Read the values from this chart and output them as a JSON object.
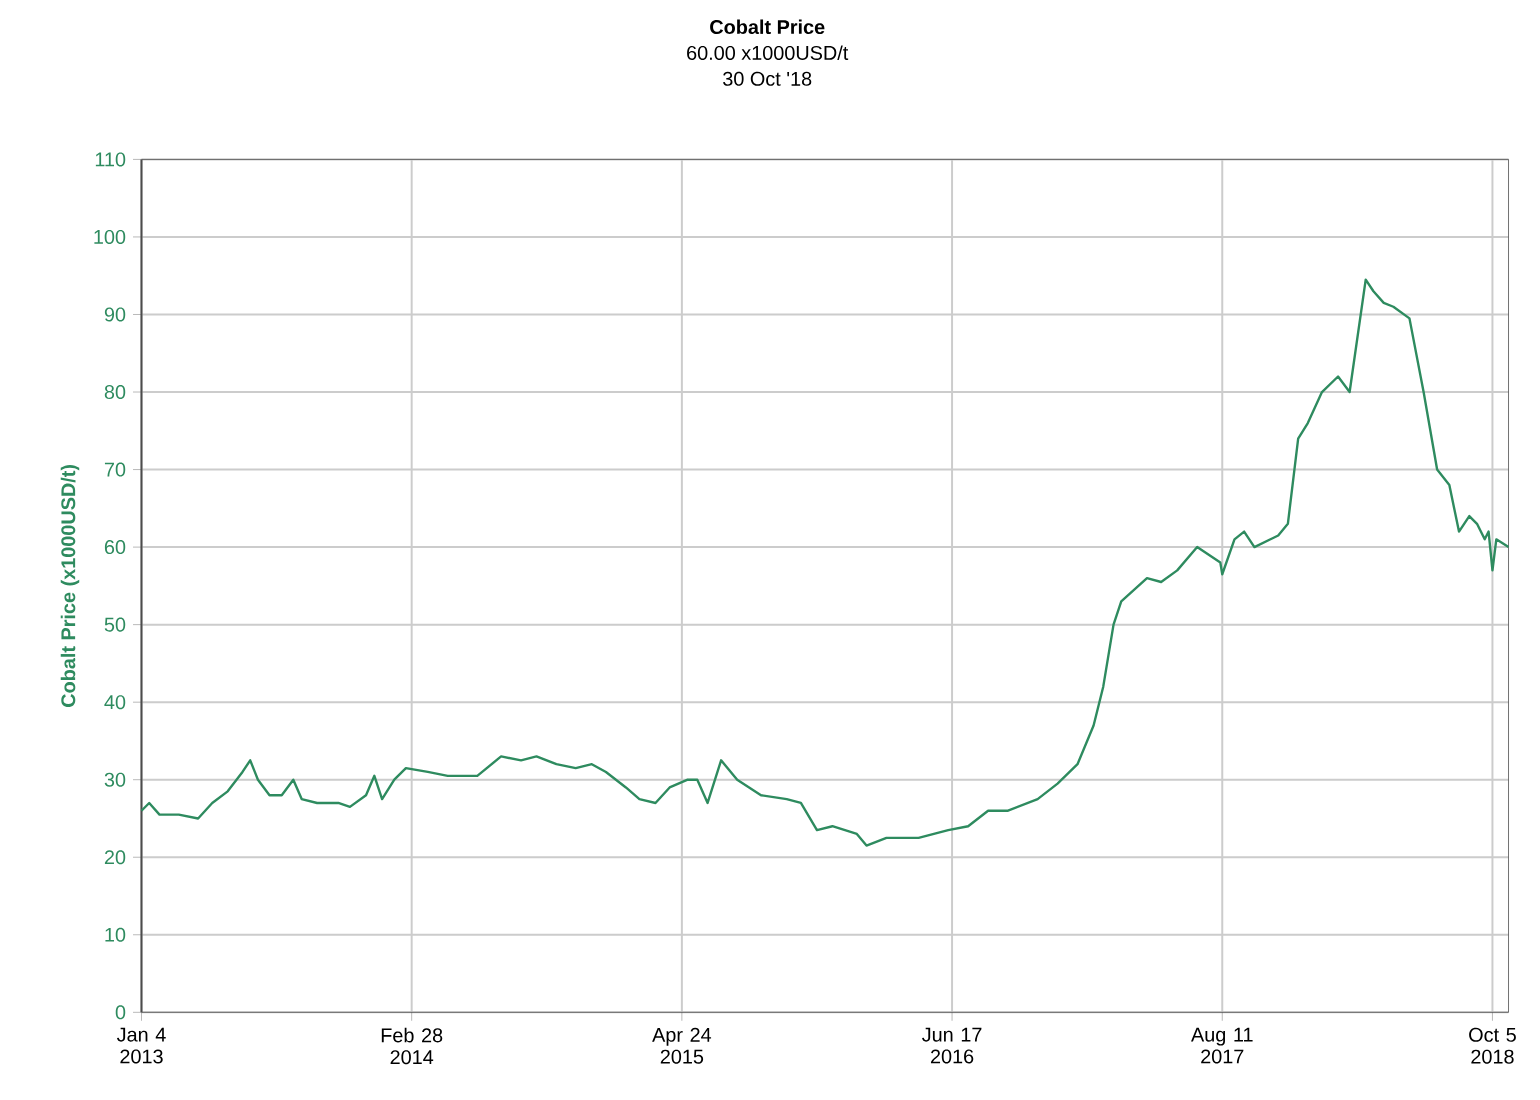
{
  "chart_data": {
    "type": "line",
    "title": "Cobalt Price",
    "subtitle": "60.00 x1000USD/t",
    "annotations": [
      "30 Oct '18"
    ],
    "ylabel": "Cobalt Price (x1000USD/t)",
    "grid": true,
    "xlim": [
      "2013-01-04",
      "2018-10-30"
    ],
    "ylim": [
      0,
      110
    ],
    "xticks": [
      {
        "value": "2013-01-04",
        "label": "Jan 4 2013"
      },
      {
        "value": "2014-02-28",
        "label": "Feb 28 2014"
      },
      {
        "value": "2015-04-24",
        "label": "Apr 24 2015"
      },
      {
        "value": "2016-06-17",
        "label": "Jun 17 2016"
      },
      {
        "value": "2017-08-11",
        "label": "Aug 11 2017"
      },
      {
        "value": "2018-10-05",
        "label": "Oct 5 2018"
      }
    ],
    "yticks": [
      0,
      10,
      20,
      30,
      40,
      50,
      60,
      70,
      80,
      90,
      100,
      110
    ],
    "x": [
      "2013-01-04",
      "2013-01-16",
      "2013-02-01",
      "2013-03-03",
      "2013-04-02",
      "2013-04-24",
      "2013-05-18",
      "2013-06-10",
      "2013-06-22",
      "2013-07-04",
      "2013-07-22",
      "2013-08-10",
      "2013-08-28",
      "2013-09-10",
      "2013-10-04",
      "2013-11-06",
      "2013-11-24",
      "2013-12-19",
      "2014-01-01",
      "2014-01-13",
      "2014-02-01",
      "2014-02-19",
      "2014-03-25",
      "2014-04-25",
      "2014-06-10",
      "2014-07-17",
      "2014-08-17",
      "2014-09-10",
      "2014-10-11",
      "2014-11-10",
      "2014-12-05",
      "2014-12-27",
      "2015-01-27",
      "2015-02-17",
      "2015-03-14",
      "2015-04-05",
      "2015-05-03",
      "2015-05-18",
      "2015-06-03",
      "2015-06-24",
      "2015-07-19",
      "2015-08-25",
      "2015-10-04",
      "2015-10-26",
      "2015-11-20",
      "2015-12-14",
      "2016-01-21",
      "2016-02-05",
      "2016-03-07",
      "2016-04-26",
      "2016-06-11",
      "2016-07-12",
      "2016-08-12",
      "2016-09-12",
      "2016-10-28",
      "2016-11-28",
      "2016-12-29",
      "2017-01-23",
      "2017-02-07",
      "2017-02-23",
      "2017-03-07",
      "2017-04-16",
      "2017-05-08",
      "2017-06-02",
      "2017-07-03",
      "2017-08-08",
      "2017-08-11",
      "2017-08-30",
      "2017-09-14",
      "2017-09-30",
      "2017-11-06",
      "2017-11-21",
      "2017-12-07",
      "2017-12-22",
      "2018-01-13",
      "2018-02-07",
      "2018-02-25",
      "2018-03-22",
      "2018-04-03",
      "2018-04-19",
      "2018-05-04",
      "2018-05-29",
      "2018-06-20",
      "2018-07-11",
      "2018-07-30",
      "2018-08-14",
      "2018-08-30",
      "2018-09-11",
      "2018-09-23",
      "2018-09-29",
      "2018-10-05",
      "2018-10-11",
      "2018-10-30"
    ],
    "series": [
      {
        "color": "#2e8b5f",
        "values": [
          26,
          27,
          25.5,
          25.5,
          25,
          27,
          28.5,
          31,
          32.5,
          30,
          28,
          28,
          30,
          27.5,
          27,
          27,
          26.5,
          28,
          30.5,
          27.5,
          30,
          31.5,
          31,
          30.5,
          30.5,
          33,
          32.5,
          33,
          32,
          31.5,
          32,
          31,
          29,
          27.5,
          27,
          29,
          30,
          30,
          27,
          32.5,
          30,
          28,
          27.5,
          27,
          23.5,
          24,
          23,
          21.5,
          22.5,
          22.5,
          23.5,
          24,
          26,
          26,
          27.5,
          29.5,
          32,
          37,
          42,
          50,
          53,
          56,
          55.5,
          57,
          60,
          58,
          56.5,
          61,
          62,
          60,
          61.5,
          63,
          74,
          76,
          80,
          82,
          80,
          94.5,
          93,
          91.5,
          91,
          89.5,
          80,
          70,
          68,
          62,
          64,
          63,
          61,
          62,
          57,
          61,
          60
        ]
      }
    ]
  }
}
